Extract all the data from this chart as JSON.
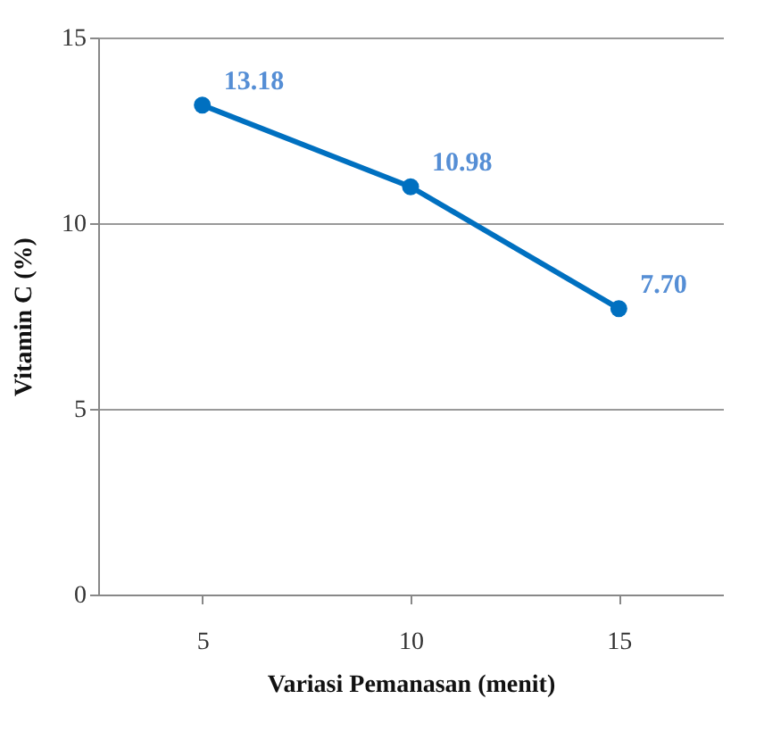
{
  "chart_data": {
    "type": "line",
    "xlabel": "Variasi Pemanasan (menit)",
    "ylabel": "Vitamin C (%)",
    "categories": [
      "5",
      "10",
      "15"
    ],
    "series": [
      {
        "color": "#0070c0",
        "values": [
          13.18,
          10.98,
          7.7
        ],
        "value_labels": [
          "13.18",
          "10.98",
          "7.70"
        ]
      }
    ],
    "ylim": [
      0,
      15
    ],
    "yticks": [
      0,
      5,
      10,
      15
    ],
    "grid": "y",
    "marker": "circle",
    "line_style": "solid",
    "legend": false
  }
}
